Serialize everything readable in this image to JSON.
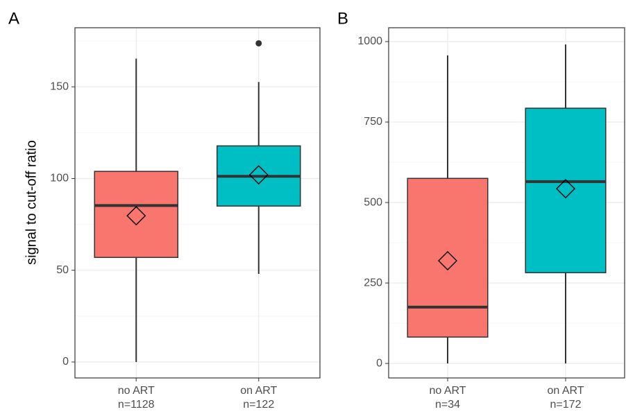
{
  "chart_data": [
    {
      "type": "box",
      "panel_label": "A",
      "ylabel": "signal to cut-off ratio",
      "categories": [
        "no ART",
        "on ART"
      ],
      "n_labels": [
        "n=1128",
        "n=122"
      ],
      "colors": [
        "#f8766d",
        "#00bfc4"
      ],
      "boxes": [
        {
          "whisker_low": 0,
          "q1": 57,
          "median": 85.3,
          "q3": 103.9,
          "whisker_high": 165.4,
          "mean": 79.7,
          "outliers": []
        },
        {
          "whisker_low": 48,
          "q1": 85,
          "median": 101.2,
          "q3": 117.8,
          "whisker_high": 152.6,
          "mean": 102,
          "outliers": [
            173.7
          ]
        }
      ],
      "ylim": [
        -8.7,
        182.2
      ],
      "yticks": [
        0,
        50,
        100,
        150
      ],
      "minor_grid": [
        25,
        75,
        125,
        175
      ],
      "grid": true
    },
    {
      "type": "box",
      "panel_label": "B",
      "categories": [
        "no ART",
        "on ART"
      ],
      "n_labels": [
        "n=34",
        "n=172"
      ],
      "colors": [
        "#f8766d",
        "#00bfc4"
      ],
      "boxes": [
        {
          "whisker_low": 0,
          "q1": 82,
          "median": 175,
          "q3": 575,
          "whisker_high": 957,
          "mean": 319,
          "outliers": []
        },
        {
          "whisker_low": 0,
          "q1": 282,
          "median": 565,
          "q3": 793,
          "whisker_high": 991,
          "mean": 543,
          "outliers": []
        }
      ],
      "ylim": [
        -45,
        1043
      ],
      "yticks": [
        0,
        250,
        500,
        750,
        1000
      ],
      "minor_grid": [
        125,
        375,
        625,
        875
      ],
      "grid": true
    }
  ]
}
